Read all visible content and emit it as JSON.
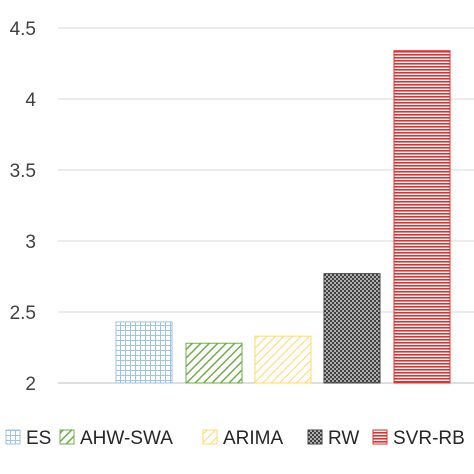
{
  "chart_data": {
    "type": "bar",
    "categories": [
      "ES",
      "AHW-SWA",
      "ARIMA",
      "RW",
      "SVR-RB"
    ],
    "values": [
      2.43,
      2.28,
      2.33,
      2.77,
      4.34
    ],
    "ylim": [
      2,
      4.5
    ],
    "yticks": [
      "2",
      "2.5",
      "3",
      "3.5",
      "4",
      "4.5"
    ],
    "grid": true,
    "legend_position": "bottom",
    "title": "",
    "xlabel": "",
    "ylabel": "",
    "colors": {
      "ES": "#9dc3e6",
      "AHW-SWA": "#70ad47",
      "ARIMA": "#ffd966",
      "RW": "#404040",
      "SVR-RB": "#e03030",
      "grid": "#d9d9d9",
      "axis": "#bfbfbf"
    },
    "patterns": {
      "ES": "grid",
      "AHW-SWA": "diagonal",
      "ARIMA": "diagonal-light",
      "RW": "dots",
      "SVR-RB": "horizontal-lines"
    }
  }
}
